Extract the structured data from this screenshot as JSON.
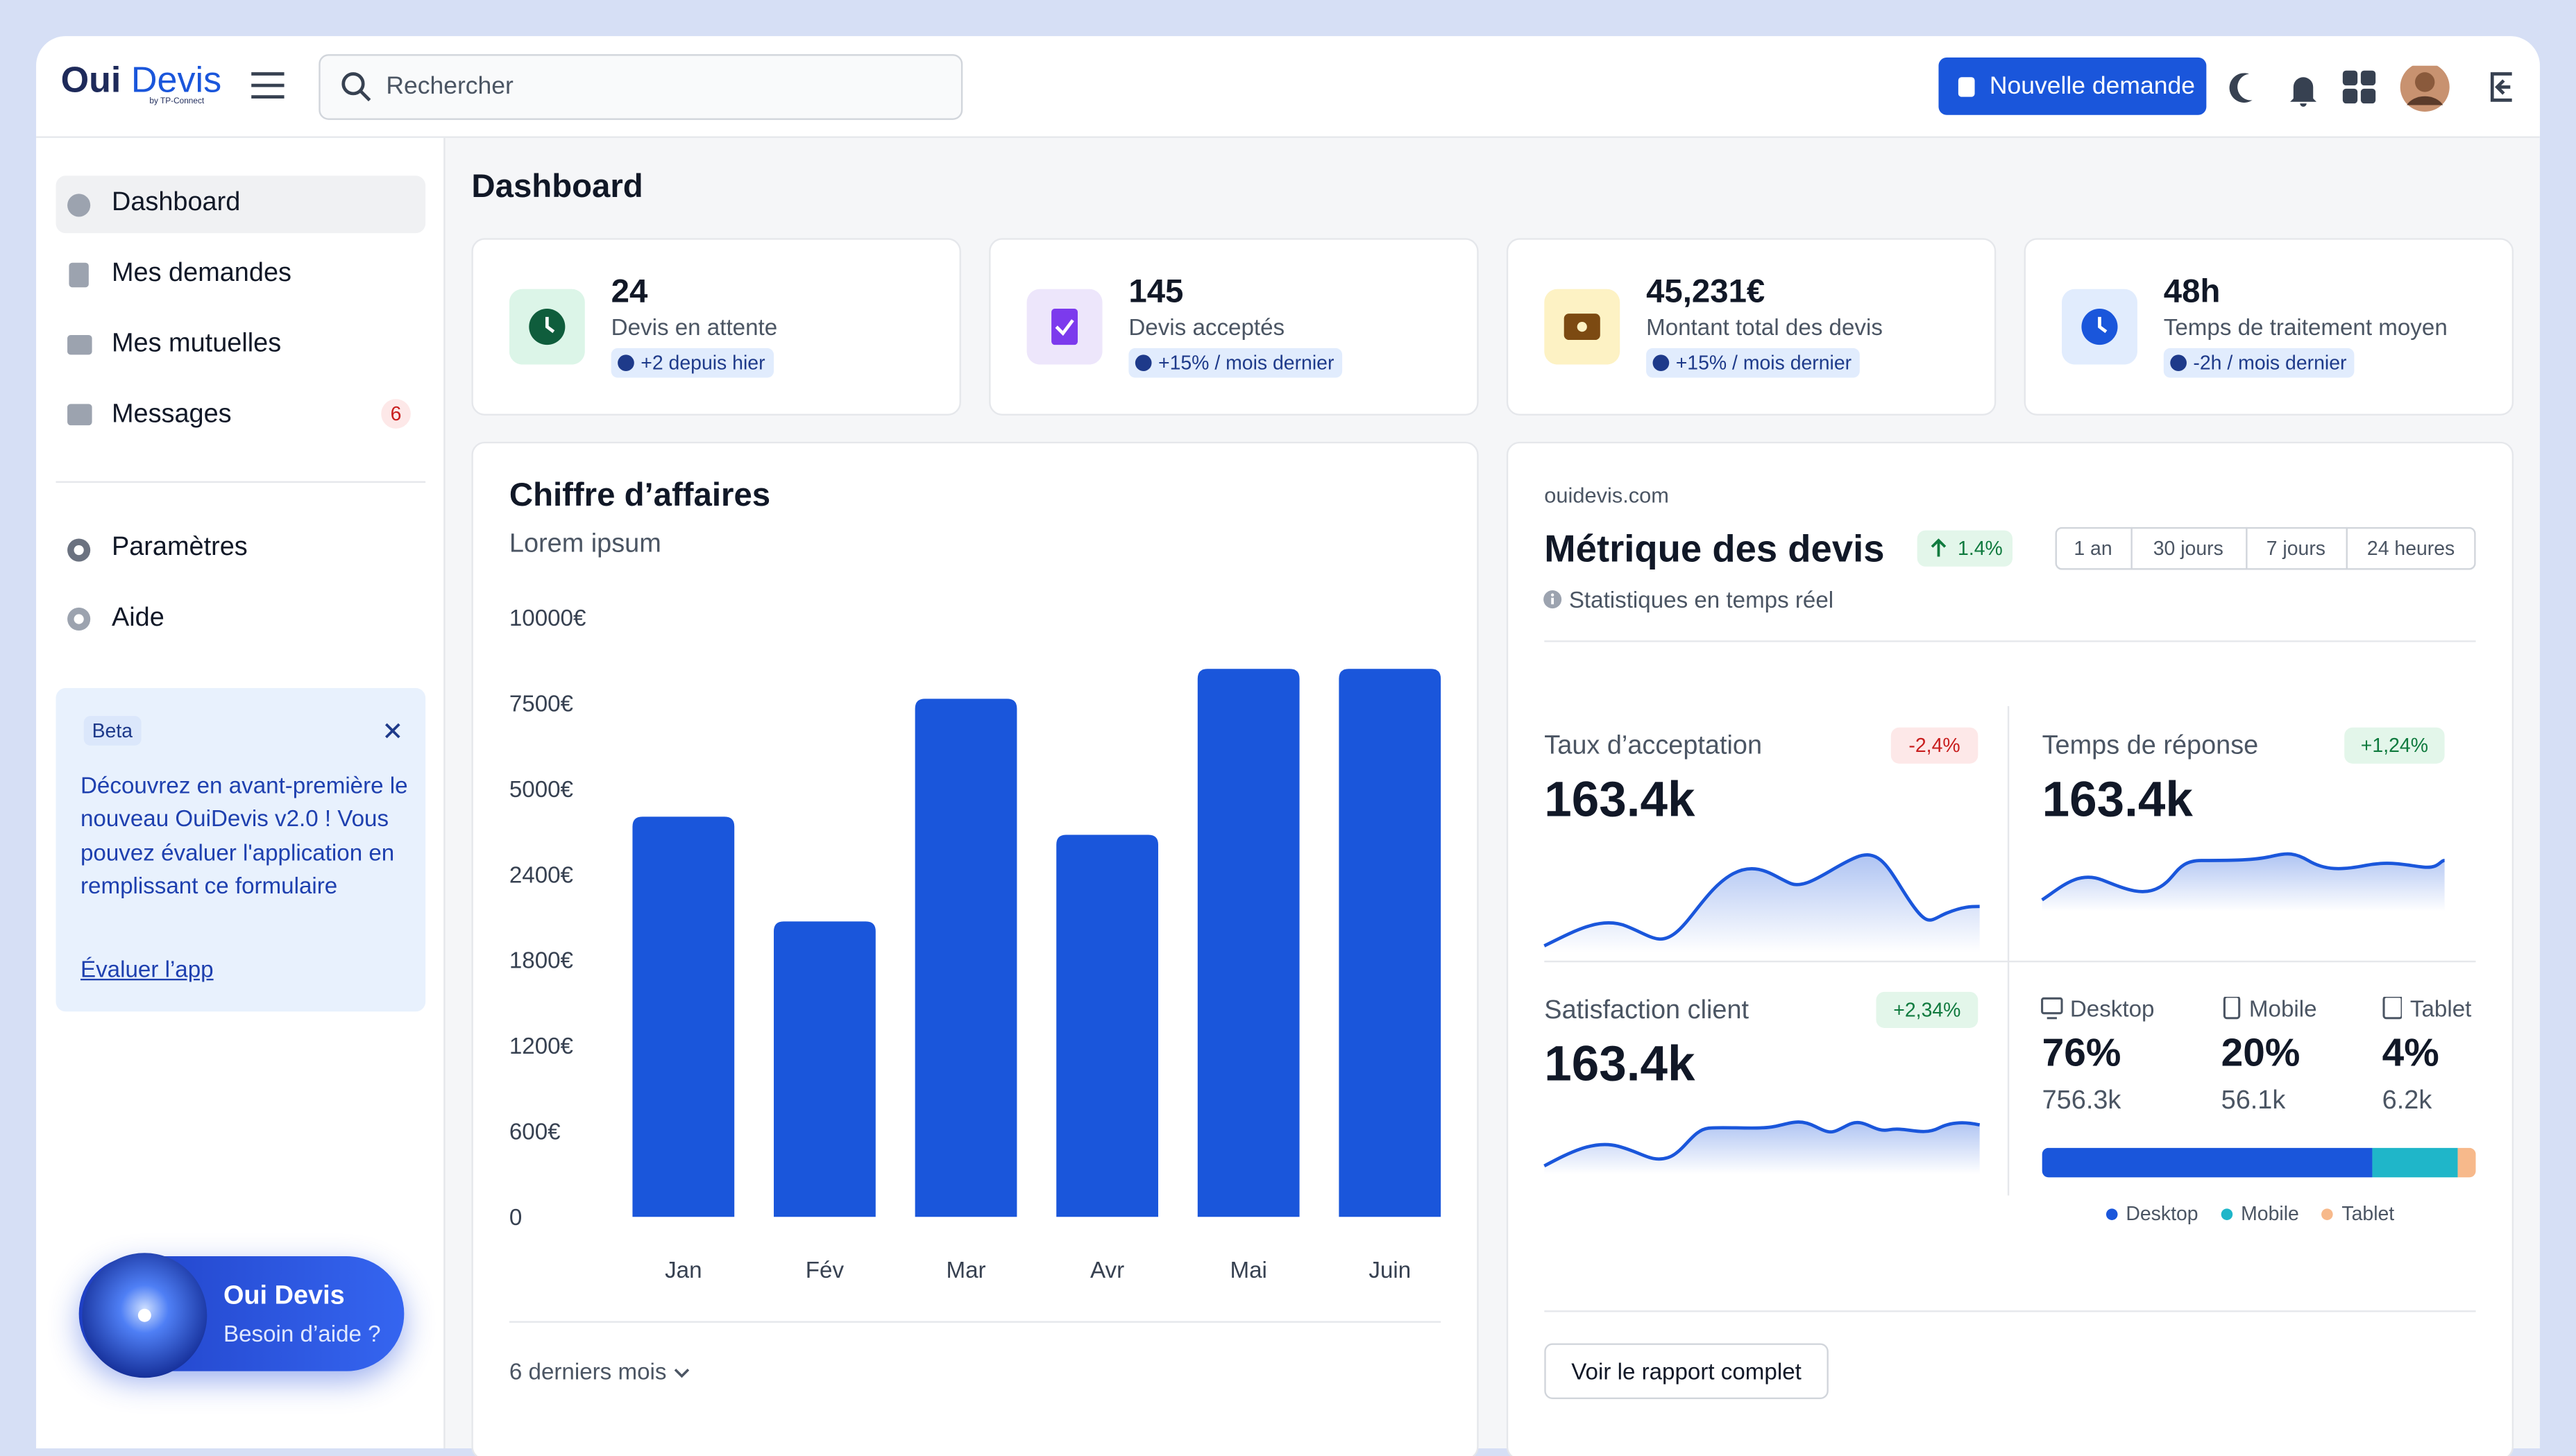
{
  "brand": {
    "name_1": "Oui",
    "name_2": "Devis",
    "tagline": "by TP-Connect"
  },
  "search_placeholder": "Rechercher",
  "new_request": "Nouvelle demande",
  "nav": [
    {
      "label": "Dashboard"
    },
    {
      "label": "Mes demandes"
    },
    {
      "label": "Mes mutuelles"
    },
    {
      "label": "Messages",
      "badge": "6"
    },
    {
      "label": "Paramètres"
    },
    {
      "label": "Aide"
    }
  ],
  "beta": {
    "tag": "Beta",
    "text": "Découvrez en avant-première le nouveau OuiDevis v2.0 ! Vous pouvez évaluer l'application en remplissant ce formulaire",
    "link": "Évaluer l’app"
  },
  "help": {
    "title": "Oui Devis",
    "subtitle": "Besoin d’aide ?"
  },
  "page_title": "Dashboard",
  "stats": [
    {
      "value": "24",
      "label": "Devis en attente",
      "delta": "+2 depuis hier"
    },
    {
      "value": "145",
      "label": "Devis acceptés",
      "delta": "+15% / mois dernier"
    },
    {
      "value": "45,231€",
      "label": "Montant total des devis",
      "delta": "+15% / mois dernier"
    },
    {
      "value": "48h",
      "label": "Temps de traitement moyen",
      "delta": "-2h / mois dernier"
    }
  ],
  "chart_data": {
    "type": "bar",
    "title": "Chiffre d’affaires",
    "subtitle": "Lorem ipsum",
    "categories": [
      "Jan",
      "Fév",
      "Mar",
      "Avr",
      "Mai",
      "Juin"
    ],
    "values": [
      4150,
      2070,
      7625,
      3600,
      8500,
      8500
    ],
    "color": "#1a56db",
    "ylim": [
      0,
      10000
    ],
    "yticks": [
      0,
      {
        "value": 600,
        "label": "600€"
      },
      {
        "value": 1200,
        "label": "1200€"
      },
      {
        "value": 1800,
        "label": "1800€"
      },
      {
        "value": 2400,
        "label": "2400€"
      },
      {
        "value": 5000,
        "label": "5000€"
      },
      {
        "value": 7500,
        "label": "7500€"
      },
      {
        "value": 10000,
        "label": "10000€"
      }
    ],
    "period": "6 derniers mois"
  },
  "metrics": {
    "site": "ouidevis.com",
    "title": "Métrique des devis",
    "change": "1.4%",
    "subtitle": "Statistiques en temps réel",
    "ranges": [
      "1 an",
      "30 jours",
      "7 jours",
      "24 heures"
    ],
    "cards": [
      {
        "label": "Taux d’acceptation",
        "value": "163.4k",
        "delta": "-2,4%"
      },
      {
        "label": "Temps de réponse",
        "value": "163.4k",
        "delta": "+1,24%"
      },
      {
        "label": "Satisfaction client",
        "value": "163.4k",
        "delta": "+2,34%"
      }
    ],
    "devices": [
      {
        "name": "Desktop",
        "share": 76,
        "share_label": "76%",
        "count": "756.3k",
        "color": "#1a56db"
      },
      {
        "name": "Mobile",
        "share": 20,
        "share_label": "20%",
        "count": "56.1k",
        "color": "#1fb6c9"
      },
      {
        "name": "Tablet",
        "share": 4,
        "share_label": "4%",
        "count": "6.2k",
        "color": "#f7b98b"
      }
    ],
    "report": "Voir le rapport complet"
  }
}
